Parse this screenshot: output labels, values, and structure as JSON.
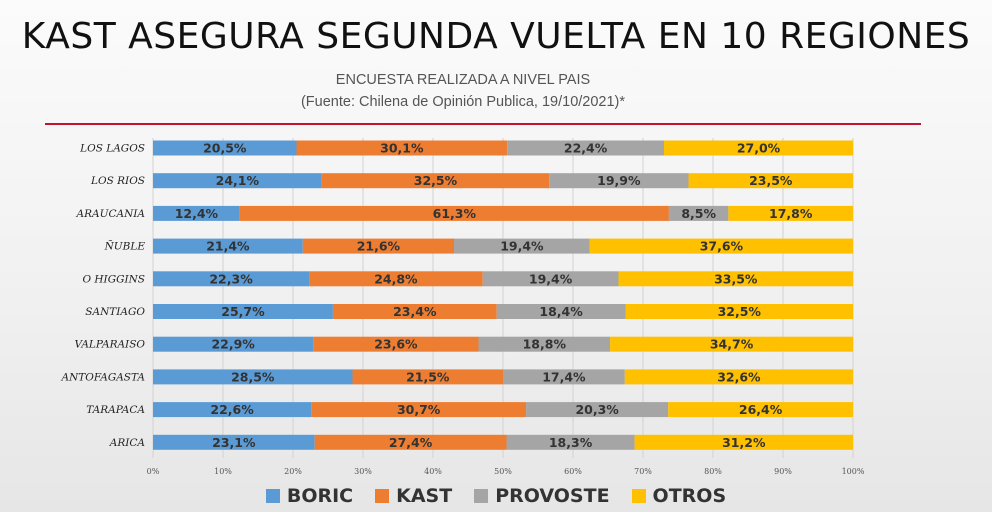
{
  "header": {
    "title": "KAST ASEGURA SEGUNDA VUELTA EN 10 REGIONES",
    "subtitle": "ENCUESTA REALIZADA A NIVEL PAIS",
    "source": "(Fuente: Chilena de Opinión Publica, 19/10/2021)*"
  },
  "colors": {
    "BORIC": "#5b9bd5",
    "KAST": "#ed7d31",
    "PROVOSTE": "#a5a5a5",
    "OTROS": "#ffc000"
  },
  "chart_data": {
    "type": "bar",
    "orientation": "horizontal",
    "stacked": true,
    "categories": [
      "LOS LAGOS",
      "LOS RIOS",
      "ARAUCANIA",
      "ÑUBLE",
      "O HIGGINS",
      "SANTIAGO",
      "VALPARAISO",
      "ANTOFAGASTA",
      "TARAPACA",
      "ARICA"
    ],
    "series": [
      {
        "name": "BORIC",
        "values": [
          20.5,
          24.1,
          12.4,
          21.4,
          22.3,
          25.7,
          22.9,
          28.5,
          22.6,
          23.1
        ],
        "labels": [
          "20,5%",
          "24,1%",
          "12,4%",
          "21,4%",
          "22,3%",
          "25,7%",
          "22,9%",
          "28,5%",
          "22,6%",
          "23,1%"
        ]
      },
      {
        "name": "KAST",
        "values": [
          30.1,
          32.5,
          61.3,
          21.6,
          24.8,
          23.4,
          23.6,
          21.5,
          30.7,
          27.4
        ],
        "labels": [
          "30,1%",
          "32,5%",
          "61,3%",
          "21,6%",
          "24,8%",
          "23,4%",
          "23,6%",
          "21,5%",
          "30,7%",
          "27,4%"
        ]
      },
      {
        "name": "PROVOSTE",
        "values": [
          22.4,
          19.9,
          8.5,
          19.4,
          19.4,
          18.4,
          18.8,
          17.4,
          20.3,
          18.3
        ],
        "labels": [
          "22,4%",
          "19,9%",
          "8,5%",
          "19,4%",
          "19,4%",
          "18,4%",
          "18,8%",
          "17,4%",
          "20,3%",
          "18,3%"
        ]
      },
      {
        "name": "OTROS",
        "values": [
          27.0,
          23.5,
          17.8,
          37.6,
          33.5,
          32.5,
          34.7,
          32.6,
          26.4,
          31.2
        ],
        "labels": [
          "27,0%",
          "23,5%",
          "17,8%",
          "37,6%",
          "33,5%",
          "32,5%",
          "34,7%",
          "32,6%",
          "26,4%",
          "31,2%"
        ]
      }
    ],
    "xlim": [
      0,
      100
    ],
    "xticks": [
      "0%",
      "10%",
      "20%",
      "30%",
      "40%",
      "50%",
      "60%",
      "70%",
      "80%",
      "90%",
      "100%"
    ],
    "grid": true,
    "legend": "bottom"
  }
}
